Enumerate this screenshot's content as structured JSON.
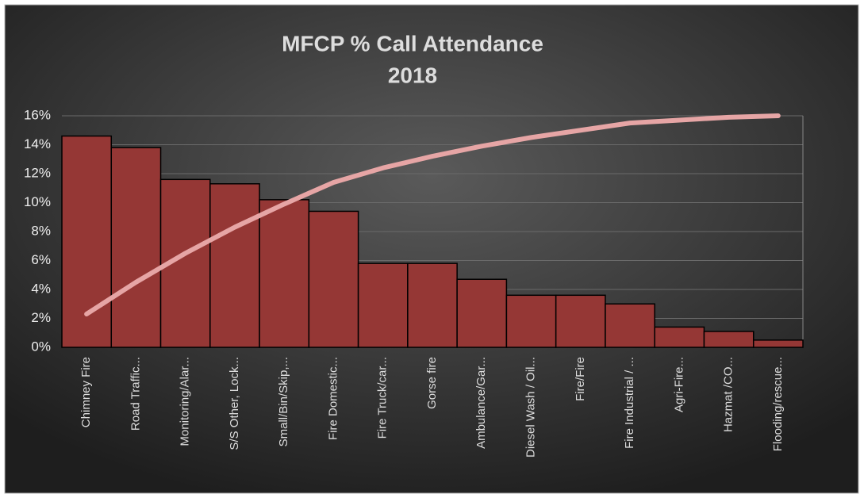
{
  "chart_data": {
    "type": "bar",
    "title": "MFCP % Call Attendance",
    "subtitle": "2018",
    "categories": [
      "Chimney Fire",
      "Road Traffic...",
      "Monitoring/Alar...",
      "S/S Other, Lock...",
      "Small/Bin/Skip,...",
      "Fire Domestic...",
      "Fire Truck/car...",
      "Gorse fire",
      "Ambulance/Gar...",
      "Diesel Wash / Oil...",
      "Fire/Fire",
      "Fire Industrial / ...",
      "Agri-Fire...",
      "Hazmat /CO...",
      "Flooding/rescue..."
    ],
    "series": [
      {
        "type": "bar",
        "color": "#953735",
        "values": [
          14.6,
          13.8,
          11.6,
          11.3,
          10.2,
          9.4,
          5.8,
          5.8,
          4.7,
          3.6,
          3.6,
          3.0,
          1.4,
          1.1,
          0.5
        ]
      },
      {
        "type": "line",
        "color": "#e6a5a5",
        "values": [
          2.3,
          4.5,
          6.5,
          8.3,
          9.9,
          11.4,
          12.4,
          13.2,
          13.9,
          14.5,
          15.0,
          15.5,
          15.7,
          15.9,
          16.0
        ]
      }
    ],
    "ylim": [
      0,
      16
    ],
    "yticks": [
      {
        "value": 0,
        "label": "0%"
      },
      {
        "value": 2,
        "label": "2%"
      },
      {
        "value": 4,
        "label": "4%"
      },
      {
        "value": 6,
        "label": "6%"
      },
      {
        "value": 8,
        "label": "8%"
      },
      {
        "value": 10,
        "label": "10%"
      },
      {
        "value": 12,
        "label": "12%"
      },
      {
        "value": 14,
        "label": "14%"
      },
      {
        "value": 16,
        "label": "16%"
      }
    ],
    "grid": true
  }
}
